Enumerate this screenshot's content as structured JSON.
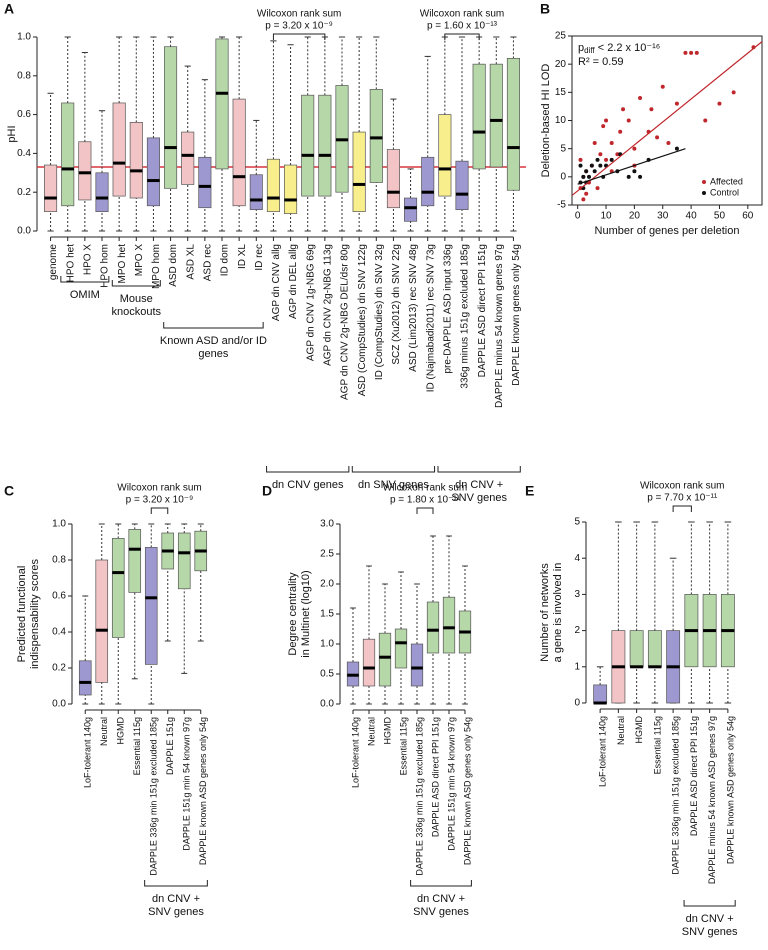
{
  "chart_data": [
    {
      "panel": "A",
      "type": "box",
      "ylabel": [
        "pHI"
      ],
      "ylim": [
        0,
        1
      ],
      "yticks": [
        {
          "value": 0,
          "label": "0.0"
        },
        {
          "value": 0.2,
          "label": "0.2"
        },
        {
          "value": 0.4,
          "label": "0.4"
        },
        {
          "value": 0.6,
          "label": "0.6"
        },
        {
          "value": 0.8,
          "label": "0.8"
        },
        {
          "value": 1,
          "label": "1.0"
        }
      ],
      "reference_line": 0.33,
      "reference_color": "#d9363e",
      "categories": [
        "genome",
        "HPO het",
        "HPO X",
        "HPO hom",
        "MPO het",
        "MPO X",
        "MPO hom",
        "ASD dom",
        "ASD XL",
        "ASD rec",
        "ID dom",
        "ID XL",
        "ID rec",
        "AGP dn CNV allg",
        "AGP dn DEL allg",
        "AGP dn CNV 1g-NBG 69g",
        "AGP dn CNV 2g-NBG 113g",
        "AGP dn CNV 2g-NBG DEL/dsr 80g",
        "ASD (CompStudies) dn SNV 122g",
        "ID (CompStudies) dn SNV 32g",
        "SCZ (Xu2012) dn SNV 22g",
        "ASD (Lim2013) rec SNV 48g",
        "ID (Najmabadi2011) rec SNV 73g",
        "pre-DAPPLE ASD input 336g",
        "336g minus 151g excluded 185g",
        "DAPPLE ASD direct PPI 151g",
        "DAPPLE minus 54 known genes 97g",
        "DAPPLE known genes only 54g"
      ],
      "colors": [
        "#f2c4c6",
        "#b6d7a8",
        "#f2c4c6",
        "#9d98d0",
        "#f2c4c6",
        "#f2c4c6",
        "#9d98d0",
        "#b6d7a8",
        "#f2c4c6",
        "#9d98d0",
        "#b6d7a8",
        "#f2c4c6",
        "#9d98d0",
        "#f8ef8c",
        "#f8ef8c",
        "#b6d7a8",
        "#b6d7a8",
        "#b6d7a8",
        "#f8ef8c",
        "#b6d7a8",
        "#f2c4c6",
        "#9d98d0",
        "#9d98d0",
        "#f8ef8c",
        "#9d98d0",
        "#b6d7a8",
        "#b6d7a8",
        "#b6d7a8"
      ],
      "boxes": [
        {
          "low": 0,
          "q1": 0.1,
          "median": 0.17,
          "q3": 0.34,
          "high": 0.71
        },
        {
          "low": 0,
          "q1": 0.13,
          "median": 0.32,
          "q3": 0.66,
          "high": 1
        },
        {
          "low": 0,
          "q1": 0.16,
          "median": 0.3,
          "q3": 0.46,
          "high": 0.92
        },
        {
          "low": 0,
          "q1": 0.1,
          "median": 0.17,
          "q3": 0.3,
          "high": 0.62
        },
        {
          "low": 0,
          "q1": 0.18,
          "median": 0.35,
          "q3": 0.66,
          "high": 1
        },
        {
          "low": 0,
          "q1": 0.17,
          "median": 0.31,
          "q3": 0.56,
          "high": 1
        },
        {
          "low": 0,
          "q1": 0.13,
          "median": 0.26,
          "q3": 0.48,
          "high": 1
        },
        {
          "low": 0,
          "q1": 0.22,
          "median": 0.43,
          "q3": 0.95,
          "high": 1
        },
        {
          "low": 0,
          "q1": 0.24,
          "median": 0.39,
          "q3": 0.51,
          "high": 0.85
        },
        {
          "low": 0,
          "q1": 0.12,
          "median": 0.23,
          "q3": 0.38,
          "high": 0.78
        },
        {
          "low": 0,
          "q1": 0.32,
          "median": 0.71,
          "q3": 0.99,
          "high": 1
        },
        {
          "low": 0,
          "q1": 0.13,
          "median": 0.28,
          "q3": 0.68,
          "high": 1
        },
        {
          "low": 0,
          "q1": 0.11,
          "median": 0.16,
          "q3": 0.29,
          "high": 0.57
        },
        {
          "low": 0,
          "q1": 0.1,
          "median": 0.17,
          "q3": 0.37,
          "high": 0.98
        },
        {
          "low": 0,
          "q1": 0.09,
          "median": 0.16,
          "q3": 0.34,
          "high": 0.96
        },
        {
          "low": 0,
          "q1": 0.18,
          "median": 0.39,
          "q3": 0.7,
          "high": 1
        },
        {
          "low": 0,
          "q1": 0.18,
          "median": 0.39,
          "q3": 0.7,
          "high": 1
        },
        {
          "low": 0,
          "q1": 0.2,
          "median": 0.47,
          "q3": 0.75,
          "high": 1
        },
        {
          "low": 0,
          "q1": 0.1,
          "median": 0.24,
          "q3": 0.51,
          "high": 1
        },
        {
          "low": 0,
          "q1": 0.25,
          "median": 0.48,
          "q3": 0.73,
          "high": 1
        },
        {
          "low": 0,
          "q1": 0.12,
          "median": 0.2,
          "q3": 0.42,
          "high": 0.68
        },
        {
          "low": 0,
          "q1": 0.05,
          "median": 0.12,
          "q3": 0.17,
          "high": 0.32
        },
        {
          "low": 0,
          "q1": 0.13,
          "median": 0.2,
          "q3": 0.38,
          "high": 0.9
        },
        {
          "low": 0,
          "q1": 0.18,
          "median": 0.32,
          "q3": 0.6,
          "high": 1
        },
        {
          "low": 0,
          "q1": 0.11,
          "median": 0.19,
          "q3": 0.36,
          "high": 1
        },
        {
          "low": 0,
          "q1": 0.32,
          "median": 0.51,
          "q3": 0.86,
          "high": 1
        },
        {
          "low": 0,
          "q1": 0.33,
          "median": 0.57,
          "q3": 0.86,
          "high": 1
        },
        {
          "low": 0,
          "q1": 0.21,
          "median": 0.43,
          "q3": 0.89,
          "high": 1
        }
      ],
      "annotations": [
        {
          "lines": [
            "Wilcoxon rank sum",
            "p = 3.20 x 10⁻⁹"
          ]
        },
        {
          "lines": [
            "Wilcoxon rank sum",
            "p = 1.60 x 10⁻¹³"
          ]
        }
      ],
      "groups": [
        {
          "lines": [
            "OMIM"
          ]
        },
        {
          "lines": [
            "Mouse",
            "knockouts"
          ]
        },
        {
          "lines": [
            "Known ASD and/or ID",
            "genes"
          ]
        },
        {
          "lines": [
            "dn CNV genes"
          ]
        },
        {
          "lines": [
            "dn SNV genes"
          ]
        },
        {
          "lines": [
            "dn CNV +",
            "SNV genes"
          ]
        }
      ]
    },
    {
      "panel": "B",
      "type": "scatter",
      "xlabel": "Number of genes per deletion",
      "ylabel": "Deletion-based HI LOD",
      "xlim": [
        -2,
        65
      ],
      "ylim": [
        -5,
        25
      ],
      "xticks": [
        0,
        10,
        20,
        30,
        40,
        50,
        60
      ],
      "yticks": [
        -5,
        0,
        5,
        10,
        15,
        20,
        25
      ],
      "legend": "bottom-right",
      "stat_text": {
        "p": "p",
        "subscript": "diff",
        "rest": " < 2.2 x 10⁻¹⁶",
        "r2": "R² = 0.59"
      },
      "series": [
        {
          "name": "Affected",
          "color": "#c0272d",
          "x": [
            1,
            2,
            3,
            5,
            8,
            10,
            12,
            15,
            18,
            20,
            22,
            25,
            28,
            30,
            35,
            38,
            40,
            42,
            45,
            50,
            55,
            62,
            6,
            10,
            14,
            3,
            1,
            4,
            16,
            20,
            9,
            12,
            7,
            2,
            26,
            32
          ],
          "values": [
            -2,
            0,
            1,
            2,
            4,
            3,
            6,
            8,
            10,
            5,
            14,
            8,
            7,
            16,
            13,
            22,
            22,
            22,
            10,
            13,
            15,
            23,
            6,
            10,
            4,
            -3,
            3,
            -1,
            12,
            2,
            9,
            1,
            -2,
            -4,
            12,
            6
          ]
        },
        {
          "name": "Control",
          "color": "#111111",
          "x": [
            1,
            2,
            3,
            4,
            5,
            6,
            8,
            10,
            12,
            15,
            18,
            20,
            25,
            35,
            1,
            2,
            3,
            7,
            9,
            14,
            22
          ],
          "values": [
            -1,
            0,
            1,
            0,
            2,
            1,
            2,
            2,
            3,
            4,
            0,
            1,
            3,
            5,
            2,
            -2,
            -1,
            3,
            0,
            1,
            0
          ]
        }
      ],
      "fit_lines": [
        {
          "color": "#c0272d",
          "x": [
            -2,
            65
          ],
          "values": [
            -3.3,
            24
          ]
        },
        {
          "color": "#111111",
          "x": [
            0,
            38
          ],
          "values": [
            -1.3,
            5
          ]
        }
      ]
    },
    {
      "panel": "C",
      "type": "box",
      "ylabel": [
        "Predicted functional",
        "indispensability scores"
      ],
      "ylim": [
        0,
        1
      ],
      "yticks": [
        {
          "value": 0,
          "label": "0.0"
        },
        {
          "value": 0.2,
          "label": "0.2"
        },
        {
          "value": 0.4,
          "label": "0.4"
        },
        {
          "value": 0.6,
          "label": "0.6"
        },
        {
          "value": 0.8,
          "label": "0.8"
        },
        {
          "value": 1,
          "label": "1.0"
        }
      ],
      "categories": [
        "LoF-tolerant 140g",
        "Neutral",
        "HGMD",
        "Essential 115g",
        "DAPPLE 336g min 151g excluded 185g",
        "DAPPLE 151g",
        "DAPPLE 151g min 54 known 97g",
        "DAPPLE known ASD genes only 54g"
      ],
      "colors": [
        "#9d98d0",
        "#f2c4c6",
        "#b6d7a8",
        "#b6d7a8",
        "#9d98d0",
        "#b6d7a8",
        "#b6d7a8",
        "#b6d7a8"
      ],
      "boxes": [
        {
          "low": 0,
          "q1": 0.05,
          "median": 0.12,
          "q3": 0.24,
          "high": 0.6
        },
        {
          "low": 0,
          "q1": 0.12,
          "median": 0.41,
          "q3": 0.8,
          "high": 1
        },
        {
          "low": 0,
          "q1": 0.37,
          "median": 0.73,
          "q3": 0.92,
          "high": 1
        },
        {
          "low": 0.14,
          "q1": 0.62,
          "median": 0.86,
          "q3": 0.97,
          "high": 1
        },
        {
          "low": 0,
          "q1": 0.22,
          "median": 0.59,
          "q3": 0.87,
          "high": 1
        },
        {
          "low": 0.35,
          "q1": 0.75,
          "median": 0.85,
          "q3": 0.95,
          "high": 1
        },
        {
          "low": 0.17,
          "q1": 0.64,
          "median": 0.84,
          "q3": 0.95,
          "high": 1
        },
        {
          "low": 0.35,
          "q1": 0.74,
          "median": 0.85,
          "q3": 0.96,
          "high": 1
        }
      ],
      "annotations": [
        {
          "lines": [
            "Wilcoxon rank sum",
            "p = 3.20 x 10⁻⁹"
          ]
        }
      ],
      "groups": [
        {
          "lines": [
            "dn CNV +",
            "SNV genes"
          ]
        }
      ]
    },
    {
      "panel": "D",
      "type": "box",
      "ylabel": [
        "Degree centrality",
        "in Multinet (log10)"
      ],
      "ylim": [
        0,
        3
      ],
      "yticks": [
        {
          "value": 0,
          "label": "0.0"
        },
        {
          "value": 0.5,
          "label": "0.5"
        },
        {
          "value": 1,
          "label": "1.0"
        },
        {
          "value": 1.5,
          "label": "1.5"
        },
        {
          "value": 2,
          "label": "2.0"
        },
        {
          "value": 2.5,
          "label": "2.5"
        },
        {
          "value": 3,
          "label": "3.0"
        }
      ],
      "categories": [
        "LoF-tolerant 140g",
        "Neutral",
        "HGMD",
        "Essential 115g",
        "DAPPLE 336g min 151g excluded 185g",
        "DAPPLE ASD direct PPI 151g",
        "DAPPLE 151g min 54 known 97g",
        "DAPPLE known ASD genes only 54g"
      ],
      "colors": [
        "#9d98d0",
        "#f2c4c6",
        "#b6d7a8",
        "#b6d7a8",
        "#9d98d0",
        "#b6d7a8",
        "#b6d7a8",
        "#b6d7a8"
      ],
      "boxes": [
        {
          "low": 0,
          "q1": 0.3,
          "median": 0.48,
          "q3": 0.7,
          "high": 1.6
        },
        {
          "low": 0,
          "q1": 0.3,
          "median": 0.6,
          "q3": 1.08,
          "high": 2.3
        },
        {
          "low": 0,
          "q1": 0.3,
          "median": 0.78,
          "q3": 1.18,
          "high": 2
        },
        {
          "low": 0,
          "q1": 0.6,
          "median": 1.02,
          "q3": 1.25,
          "high": 2.2
        },
        {
          "low": 0,
          "q1": 0.3,
          "median": 0.6,
          "q3": 1,
          "high": 2
        },
        {
          "low": 0,
          "q1": 0.85,
          "median": 1.23,
          "q3": 1.7,
          "high": 2.8
        },
        {
          "low": 0,
          "q1": 0.85,
          "median": 1.27,
          "q3": 1.78,
          "high": 2.8
        },
        {
          "low": 0,
          "q1": 0.85,
          "median": 1.2,
          "q3": 1.55,
          "high": 2.3
        }
      ],
      "annotations": [
        {
          "lines": [
            "Wilcoxon rank sum",
            "p = 1.80 x 10⁻¹¹"
          ]
        }
      ],
      "groups": [
        {
          "lines": [
            "dn CNV +",
            "SNV genes"
          ]
        }
      ]
    },
    {
      "panel": "E",
      "type": "box",
      "ylabel": [
        "Number of networks",
        "a gene is involved in"
      ],
      "ylim": [
        0,
        5
      ],
      "yticks": [
        0,
        1,
        2,
        3,
        4,
        5
      ],
      "categories": [
        "LoF-tolerant 140g",
        "Neutral",
        "HGMD",
        "Essential 115g",
        "DAPPLE 336g min 151g excluded 185g",
        "DAPPLE ASD direct PPI 151g",
        "DAPPLE minus 54 known ASD genes 97g",
        "DAPPLE known ASD genes only 54g"
      ],
      "colors": [
        "#9d98d0",
        "#f2c4c6",
        "#b6d7a8",
        "#b6d7a8",
        "#9d98d0",
        "#b6d7a8",
        "#b6d7a8",
        "#b6d7a8"
      ],
      "boxes": [
        {
          "low": 0,
          "q1": 0,
          "median": 0,
          "q3": 0.5,
          "high": 1
        },
        {
          "low": 0,
          "q1": 0,
          "median": 1,
          "q3": 2,
          "high": 5
        },
        {
          "low": 0,
          "q1": 1,
          "median": 1,
          "q3": 2,
          "high": 5
        },
        {
          "low": 0,
          "q1": 1,
          "median": 1,
          "q3": 2,
          "high": 5
        },
        {
          "low": 0,
          "q1": 0,
          "median": 1,
          "q3": 2,
          "high": 4
        },
        {
          "low": 0,
          "q1": 1,
          "median": 2,
          "q3": 3,
          "high": 5
        },
        {
          "low": 0,
          "q1": 1,
          "median": 2,
          "q3": 3,
          "high": 5
        },
        {
          "low": 0,
          "q1": 1,
          "median": 2,
          "q3": 3,
          "high": 5
        }
      ],
      "annotations": [
        {
          "lines": [
            "Wilcoxon rank sum",
            "p = 7.70 x 10⁻¹¹"
          ]
        }
      ],
      "groups": [
        {
          "lines": [
            "dn CNV +",
            "SNV genes"
          ]
        }
      ]
    }
  ]
}
